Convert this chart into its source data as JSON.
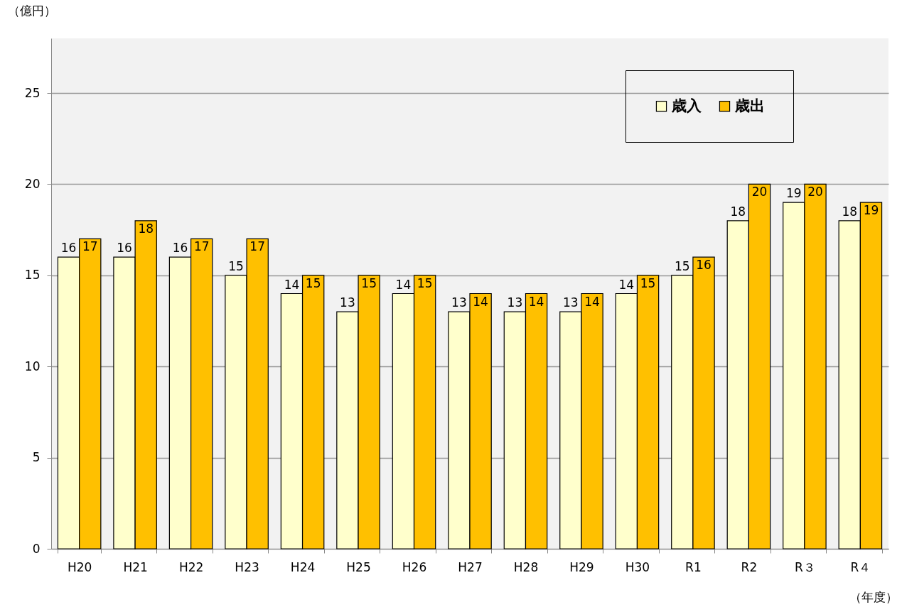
{
  "chart_data": {
    "type": "bar",
    "ylabel": "（億円）",
    "xlabel": "（年度）",
    "categories": [
      "H20",
      "H21",
      "H22",
      "H23",
      "H24",
      "H25",
      "H26",
      "H27",
      "H28",
      "H29",
      "H30",
      "R1",
      "R2",
      "R３",
      "R４"
    ],
    "series": [
      {
        "name": "歳入",
        "color": "#ffffcc",
        "values": [
          16,
          16,
          16,
          15,
          14,
          13,
          14,
          13,
          13,
          13,
          14,
          15,
          18,
          19,
          18
        ]
      },
      {
        "name": "歳出",
        "color": "#ffc000",
        "values": [
          17,
          18,
          17,
          17,
          15,
          15,
          15,
          14,
          14,
          14,
          15,
          16,
          20,
          20,
          19
        ]
      }
    ],
    "ylim": [
      0,
      28
    ],
    "yticks": [
      0,
      5,
      10,
      15,
      20,
      25
    ],
    "grid": "y",
    "legend": "top right",
    "data_labels": true
  }
}
